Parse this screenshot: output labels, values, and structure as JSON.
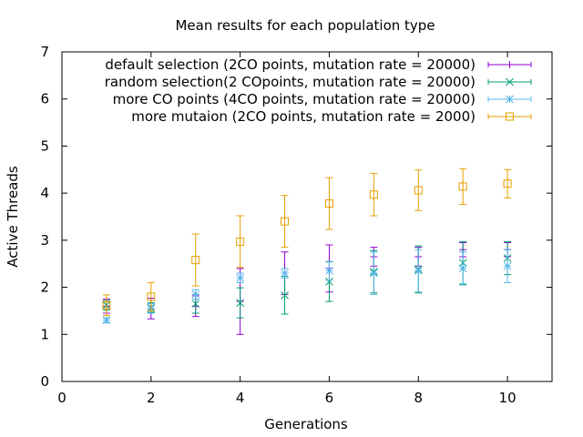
{
  "chart_data": {
    "type": "scatter",
    "title": "Mean results for each population type",
    "xlabel": "Generations",
    "ylabel": "Active Threads",
    "xlim": [
      0,
      11
    ],
    "ylim": [
      0,
      7
    ],
    "xticks": [
      "0",
      "2",
      "4",
      "6",
      "8",
      "10"
    ],
    "yticks": [
      "0",
      "1",
      "2",
      "3",
      "4",
      "5",
      "6",
      "7"
    ],
    "series": [
      {
        "name": "default selection (2CO points, mutation rate = 20000)",
        "color": "#9400d3",
        "marker": "plus",
        "x": [
          1,
          2,
          3,
          4,
          5,
          6,
          7,
          8,
          9,
          10
        ],
        "y": [
          1.6,
          1.55,
          1.6,
          1.7,
          2.3,
          2.4,
          2.65,
          2.65,
          2.8,
          2.8
        ],
        "yerr": [
          0.15,
          0.22,
          0.22,
          0.7,
          0.45,
          0.5,
          0.2,
          0.2,
          0.15,
          0.15
        ]
      },
      {
        "name": "random selection(2 COpoints, mutation rate = 20000)",
        "color": "#009e73",
        "marker": "x",
        "x": [
          1,
          2,
          3,
          4,
          5,
          6,
          7,
          8,
          9,
          10
        ],
        "y": [
          1.62,
          1.57,
          1.65,
          1.67,
          1.83,
          2.12,
          2.33,
          2.38,
          2.52,
          2.62
        ],
        "yerr": [
          0.1,
          0.1,
          0.2,
          0.32,
          0.4,
          0.42,
          0.45,
          0.5,
          0.45,
          0.35
        ]
      },
      {
        "name": "more CO points   (4CO points, mutation rate = 20000)",
        "color": "#56b4e9",
        "marker": "star",
        "x": [
          1,
          2,
          3,
          4,
          5,
          6,
          7,
          8,
          9,
          10
        ],
        "y": [
          1.3,
          1.55,
          1.85,
          2.2,
          2.3,
          2.35,
          2.3,
          2.35,
          2.4,
          2.45
        ],
        "yerr": [
          0.05,
          0.1,
          0.1,
          0.1,
          0.1,
          0.2,
          0.45,
          0.45,
          0.35,
          0.35
        ]
      },
      {
        "name": "more mutaion (2CO points, mutation rate = 2000)",
        "color": "#e69f00",
        "marker": "square",
        "x": [
          1,
          2,
          3,
          4,
          5,
          6,
          7,
          8,
          9,
          10
        ],
        "y": [
          1.62,
          1.8,
          2.58,
          2.97,
          3.4,
          3.78,
          3.97,
          4.06,
          4.14,
          4.2
        ],
        "yerr": [
          0.22,
          0.3,
          0.55,
          0.55,
          0.55,
          0.55,
          0.45,
          0.43,
          0.38,
          0.3
        ]
      }
    ]
  }
}
